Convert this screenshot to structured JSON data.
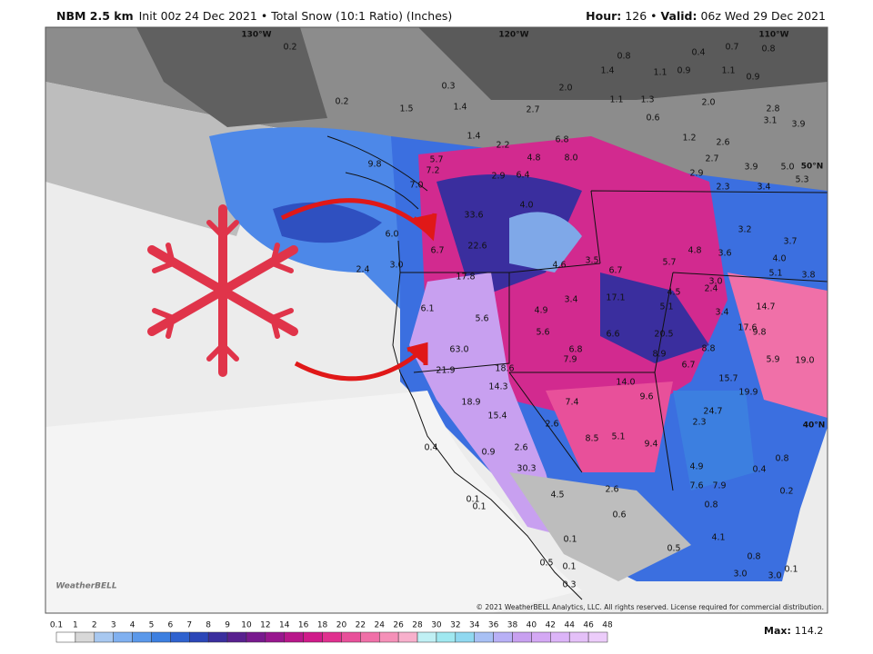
{
  "header": {
    "model": "NBM 2.5 km",
    "init": "Init 00z 24 Dec 2021 • Total Snow (10:1 Ratio) (Inches)",
    "hour_label": "Hour:",
    "hour": "126 •",
    "valid_label": "Valid:",
    "valid": "06z Wed 29 Dec 2021"
  },
  "grid_labels": [
    "130°W",
    "120°W",
    "110°W",
    "50°N",
    "40°N"
  ],
  "map_labels": [
    "0.2",
    "0.3",
    "0.2",
    "1.5",
    "1.4",
    "2.7",
    "2.0",
    "1.4",
    "0.8",
    "1.1",
    "0.9",
    "0.4",
    "0.7",
    "0.8",
    "1.1",
    "0.9",
    "1.1",
    "1.3",
    "0.6",
    "2.0",
    "2.8",
    "3.1",
    "3.9",
    "1.2",
    "2.6",
    "2.7",
    "2.9",
    "3.9",
    "5.0",
    "5.3",
    "2.3",
    "3.4",
    "1.4",
    "2.2",
    "6.8",
    "4.8",
    "8.0",
    "6.4",
    "2.9",
    "5.7",
    "7.2",
    "7.0",
    "9.8",
    "4.0",
    "33.6",
    "6.0",
    "6.7",
    "22.6",
    "2.4",
    "3.0",
    "17.8",
    "4.6",
    "3.5",
    "6.7",
    "3.4",
    "17.1",
    "4.9",
    "5.6",
    "6.1",
    "5.6",
    "6.6",
    "20.5",
    "6.8",
    "7.9",
    "8.9",
    "8.8",
    "63.0",
    "21.9",
    "18.6",
    "14.3",
    "18.9",
    "15.4",
    "14.0",
    "9.6",
    "7.4",
    "6.7",
    "15.7",
    "19.9",
    "24.7",
    "5.9",
    "19.0",
    "14.7",
    "17.6",
    "9.8",
    "3.2",
    "3.7",
    "4.0",
    "5.1",
    "3.8",
    "3.6",
    "4.8",
    "5.7",
    "3.0",
    "2.4",
    "3.4",
    "4.5",
    "5.1",
    "2.6",
    "8.5",
    "5.1",
    "9.4",
    "2.6",
    "30.3",
    "0.9",
    "0.4",
    "4.9",
    "7.9",
    "7.6",
    "2.6",
    "4.5",
    "0.6",
    "0.8",
    "0.5",
    "4.1",
    "0.8",
    "3.0",
    "3.0",
    "0.1",
    "0.1",
    "0.5",
    "0.1",
    "0.3",
    "0.1",
    "0.1",
    "0.4",
    "0.8",
    "0.2",
    "2.3"
  ],
  "logo": "WeatherBELL",
  "copyright": "© 2021 WeatherBELL Analytics, LLC. All rights reserved. License required for commercial distribution.",
  "colorbar": [
    {
      "label": "0.1",
      "color": "#ffffff"
    },
    {
      "label": "1",
      "color": "#d8d8d8"
    },
    {
      "label": "2",
      "color": "#a8c8f0"
    },
    {
      "label": "3",
      "color": "#80b0f0"
    },
    {
      "label": "4",
      "color": "#5a98ea"
    },
    {
      "label": "5",
      "color": "#3c7fe0"
    },
    {
      "label": "6",
      "color": "#2f62cf"
    },
    {
      "label": "7",
      "color": "#2b46b8"
    },
    {
      "label": "8",
      "color": "#3a2e9e"
    },
    {
      "label": "9",
      "color": "#58208f"
    },
    {
      "label": "10",
      "color": "#78198e"
    },
    {
      "label": "12",
      "color": "#98168e"
    },
    {
      "label": "14",
      "color": "#b8168a"
    },
    {
      "label": "16",
      "color": "#d01a8a"
    },
    {
      "label": "18",
      "color": "#e0308f"
    },
    {
      "label": "20",
      "color": "#e8509a"
    },
    {
      "label": "22",
      "color": "#f070a8"
    },
    {
      "label": "24",
      "color": "#f590b8"
    },
    {
      "label": "26",
      "color": "#f8b0cc"
    },
    {
      "label": "28",
      "color": "#c0f0f4"
    },
    {
      "label": "30",
      "color": "#a0e8f0"
    },
    {
      "label": "32",
      "color": "#90d8f0"
    },
    {
      "label": "34",
      "color": "#a8c0f4"
    },
    {
      "label": "36",
      "color": "#b8b0f6"
    },
    {
      "label": "38",
      "color": "#c8a0f0"
    },
    {
      "label": "40",
      "color": "#d4a8f4"
    },
    {
      "label": "42",
      "color": "#dcb4f8"
    },
    {
      "label": "44",
      "color": "#e4c0f8"
    },
    {
      "label": "46",
      "color": "#ecccfa"
    },
    {
      "label": "48",
      "color": "#f4dcfc"
    }
  ],
  "max_label": "Max:",
  "max_value": "114.2"
}
